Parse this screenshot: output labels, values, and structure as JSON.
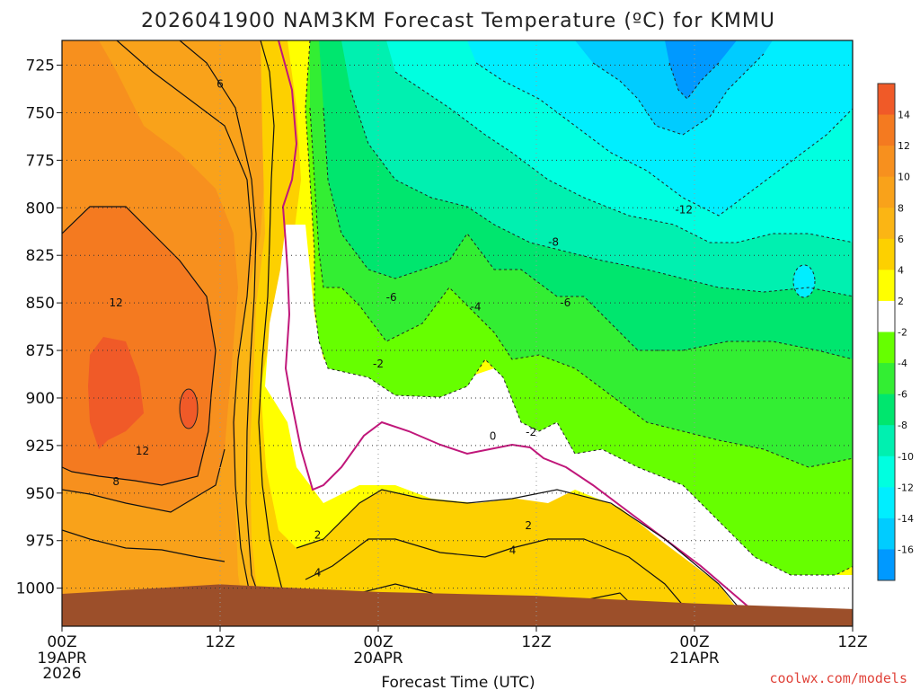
{
  "chart_data": {
    "type": "heatmap",
    "title": "2026041900 NAM3KM Forecast Temperature (ºC) for KMMU",
    "xlabel": "Forecast Time (UTC)",
    "ylabel": "",
    "x_ticks": [
      {
        "hour": 0,
        "label": "00Z",
        "sub1": "19APR",
        "sub2": "2026"
      },
      {
        "hour": 12,
        "label": "12Z",
        "sub1": "",
        "sub2": ""
      },
      {
        "hour": 24,
        "label": "00Z",
        "sub1": "20APR",
        "sub2": ""
      },
      {
        "hour": 36,
        "label": "12Z",
        "sub1": "",
        "sub2": ""
      },
      {
        "hour": 48,
        "label": "00Z",
        "sub1": "21APR",
        "sub2": ""
      },
      {
        "hour": 60,
        "label": "12Z",
        "sub1": "",
        "sub2": ""
      }
    ],
    "xlim": [
      0,
      60
    ],
    "y_ticks": [
      725,
      750,
      775,
      800,
      825,
      850,
      875,
      900,
      925,
      950,
      975,
      1000
    ],
    "ylim_top": 712,
    "ylim_bottom": 1020,
    "colorbar": {
      "ticks": [
        14,
        12,
        10,
        8,
        6,
        4,
        2,
        -2,
        -4,
        -6,
        -8,
        -10,
        -12,
        -14,
        -16
      ],
      "bands": [
        {
          "lo": 14,
          "hi": 16,
          "color": "#f05a28"
        },
        {
          "lo": 12,
          "hi": 14,
          "color": "#f47a20"
        },
        {
          "lo": 10,
          "hi": 12,
          "color": "#f7901e"
        },
        {
          "lo": 8,
          "hi": 10,
          "color": "#f9a21a"
        },
        {
          "lo": 6,
          "hi": 8,
          "color": "#fbb514"
        },
        {
          "lo": 4,
          "hi": 6,
          "color": "#fdd000"
        },
        {
          "lo": 2,
          "hi": 4,
          "color": "#ffff00"
        },
        {
          "lo": -2,
          "hi": 2,
          "color": "#ffffff"
        },
        {
          "lo": -4,
          "hi": -2,
          "color": "#66ff00"
        },
        {
          "lo": -6,
          "hi": -4,
          "color": "#33ee33"
        },
        {
          "lo": -8,
          "hi": -6,
          "color": "#00e66e"
        },
        {
          "lo": -10,
          "hi": -8,
          "color": "#00f0b0"
        },
        {
          "lo": -12,
          "hi": -10,
          "color": "#00ffe0"
        },
        {
          "lo": -14,
          "hi": -12,
          "color": "#00eeff"
        },
        {
          "lo": -16,
          "hi": -14,
          "color": "#00ccff"
        },
        {
          "lo": -18,
          "hi": -16,
          "color": "#0099ff"
        }
      ]
    },
    "contour_labels": [
      {
        "text": "6",
        "hour": 12.0,
        "p": 735
      },
      {
        "text": "12",
        "hour": 4.1,
        "p": 850
      },
      {
        "text": "12",
        "hour": 6.1,
        "p": 928
      },
      {
        "text": "8",
        "hour": 4.1,
        "p": 944
      },
      {
        "text": "2",
        "hour": 19.4,
        "p": 972
      },
      {
        "text": "4",
        "hour": 19.4,
        "p": 992
      },
      {
        "text": "-6",
        "hour": 25.0,
        "p": 847
      },
      {
        "text": "-4",
        "hour": 31.4,
        "p": 852
      },
      {
        "text": "-2",
        "hour": 24.0,
        "p": 882
      },
      {
        "text": "0",
        "hour": 32.7,
        "p": 920
      },
      {
        "text": "-2",
        "hour": 35.6,
        "p": 918
      },
      {
        "text": "2",
        "hour": 35.4,
        "p": 967
      },
      {
        "text": "4",
        "hour": 34.2,
        "p": 980
      },
      {
        "text": "-8",
        "hour": 37.3,
        "p": 818
      },
      {
        "text": "-6",
        "hour": 38.2,
        "p": 850
      },
      {
        "text": "-12",
        "hour": 47.2,
        "p": 801
      }
    ],
    "temperature_regions_approx": [
      {
        "band": "14 to 16",
        "hours": [
          2,
          6
        ],
        "p": [
          870,
          920
        ]
      },
      {
        "band": "12 to 14",
        "hours": [
          0,
          11
        ],
        "p": [
          815,
          930
        ]
      },
      {
        "band": "2 to 12",
        "hours": [
          0,
          17
        ],
        "p": [
          712,
          1010
        ]
      },
      {
        "band": "-2 to 2",
        "hours": [
          16,
          60
        ],
        "p": [
          800,
          1015
        ]
      },
      {
        "band": "-4 to -10",
        "hours": [
          19,
          60
        ],
        "p": [
          712,
          990
        ]
      },
      {
        "band": "-10 to -16",
        "hours": [
          24,
          60
        ],
        "p": [
          712,
          840
        ]
      }
    ],
    "surface_pressure_hpa": [
      {
        "hour": 0,
        "p": 1003
      },
      {
        "hour": 12,
        "p": 998
      },
      {
        "hour": 24,
        "p": 1002
      },
      {
        "hour": 36,
        "p": 1004
      },
      {
        "hour": 48,
        "p": 1008
      },
      {
        "hour": 60,
        "p": 1011
      }
    ]
  },
  "credit": "coolwx.com/models"
}
